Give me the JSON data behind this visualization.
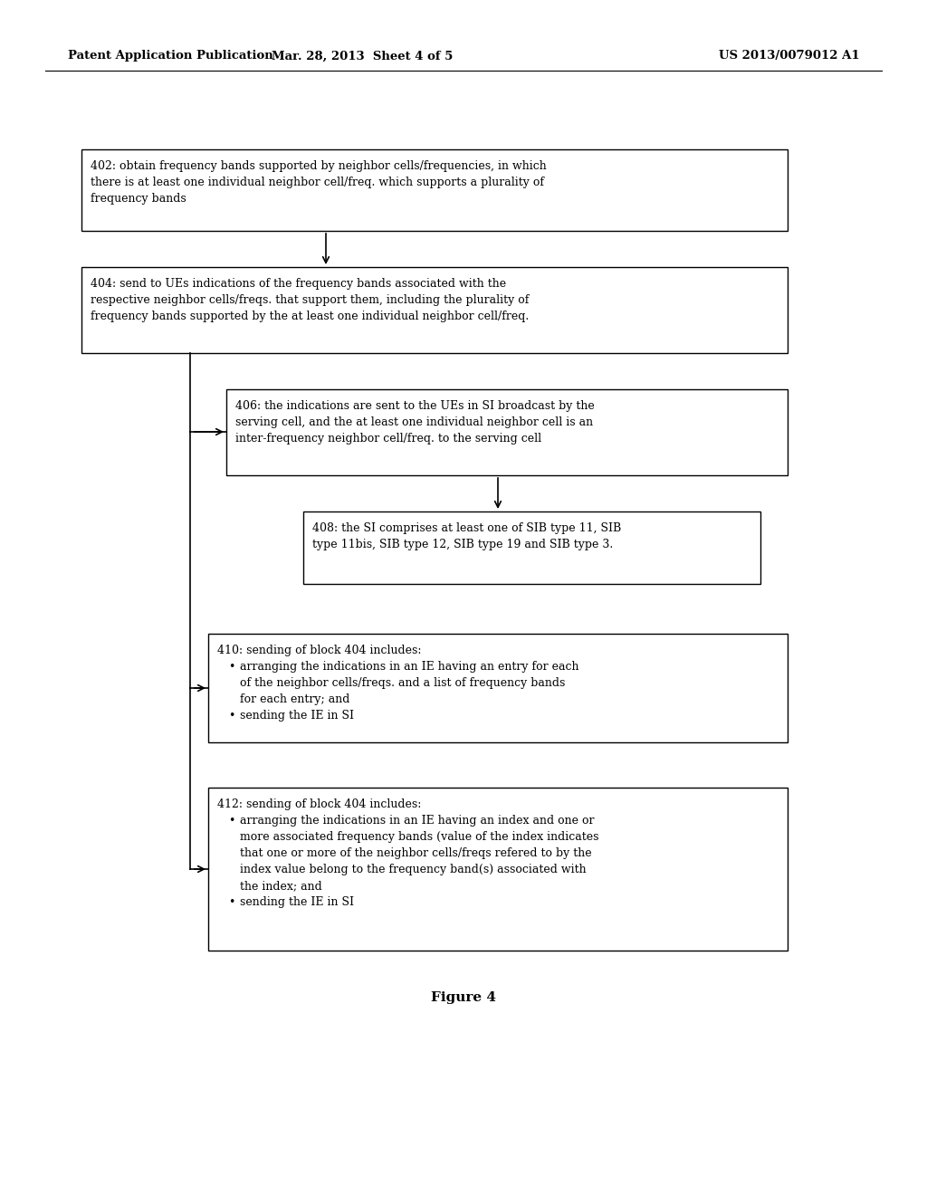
{
  "bg_color": "#ffffff",
  "header_left": "Patent Application Publication",
  "header_mid": "Mar. 28, 2013  Sheet 4 of 5",
  "header_right": "US 2013/0079012 A1",
  "figure_label": "Figure 4",
  "box402": {
    "text_line1": "402: obtain frequency bands supported by neighbor cells/frequencies, in which",
    "text_line2": "there is at least one individual neighbor cell/freq. which supports a plurality of",
    "text_line3": "frequency bands"
  },
  "box404": {
    "text_line1": "404: send to UEs indications of the frequency bands associated with the",
    "text_line2": "respective neighbor cells/freqs. that support them, including the plurality of",
    "text_line3": "frequency bands supported by the at least one individual neighbor cell/freq."
  },
  "box406": {
    "text_line1": "406: the indications are sent to the UEs in SI broadcast by the",
    "text_line2": "serving cell, and the at least one individual neighbor cell is an",
    "text_line3": "inter-frequency neighbor cell/freq. to the serving cell"
  },
  "box408": {
    "text_line1": "408: the SI comprises at least one of SIB type 11, SIB",
    "text_line2": "type 11bis, SIB type 12, SIB type 19 and SIB type 3."
  },
  "box410_title": "410: sending of block 404 includes:",
  "box410_bullet1": "arranging the indications in an IE having an entry for each",
  "box410_bullet1b": "of the neighbor cells/freqs. and a list of frequency bands",
  "box410_bullet1c": "for each entry; and",
  "box410_bullet2": "sending the IE in SI",
  "box412_title": "412: sending of block 404 includes:",
  "box412_bullet1": "arranging the indications in an IE having an index and one or",
  "box412_bullet1b": "more associated frequency bands (value of the index indicates",
  "box412_bullet1c": "that one or more of the neighbor cells/freqs refered to by the",
  "box412_bullet1d": "index value belong to the frequency band(s) associated with",
  "box412_bullet1e": "the index; and",
  "box412_bullet2": "sending the IE in SI"
}
